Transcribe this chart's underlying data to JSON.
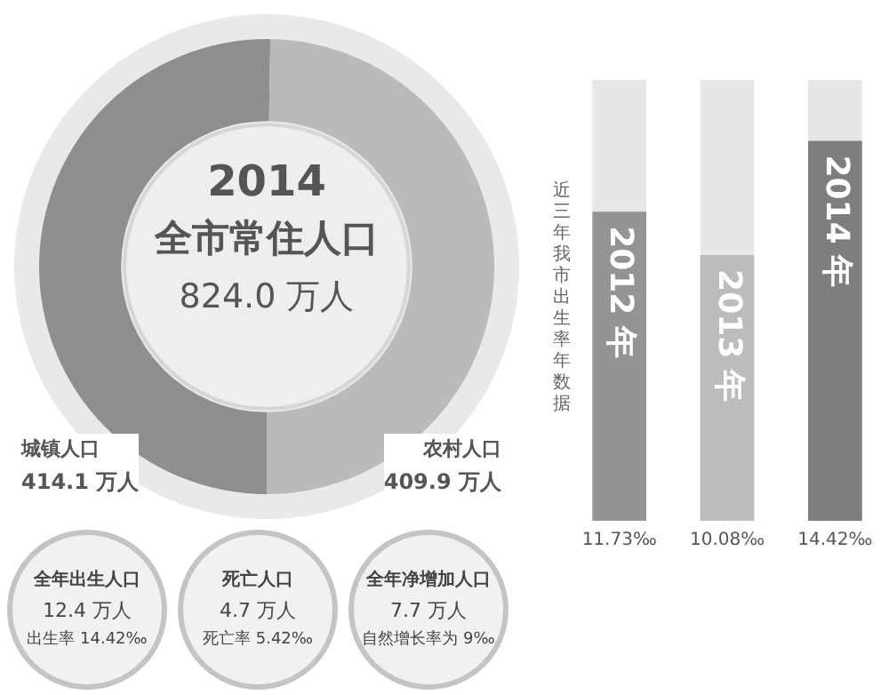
{
  "chart_data": [
    {
      "type": "donut",
      "title": "2014",
      "subtitle": "全市常住人口",
      "annotations": [
        "824.0 万人"
      ],
      "categories": [
        "城镇人口",
        "农村人口"
      ],
      "values": [
        414.1,
        409.9
      ],
      "colors": [
        "#8e8e8e",
        "#bababa"
      ],
      "value_labels": [
        "414.1 万人",
        "409.9 万人"
      ]
    },
    {
      "type": "bar",
      "title": "近三年我市出生率年数据",
      "categories": [
        "2012 年",
        "2013 年",
        "2014 年"
      ],
      "values": [
        11.73,
        10.08,
        14.42
      ],
      "colors": [
        "#949494",
        "#bcbcbc",
        "#7e7e7e"
      ],
      "value_labels": [
        "11.73‰",
        "10.08‰",
        "14.42‰"
      ]
    },
    {
      "type": "other",
      "annotations": [
        "全年出生人口",
        "12.4 万人",
        "出生率 14.42‰",
        "死亡人口",
        "4.7 万人",
        "死亡率 5.42‰",
        "全年净增加人口",
        "7.7 万人",
        "自然增长率为 9‰"
      ]
    }
  ]
}
